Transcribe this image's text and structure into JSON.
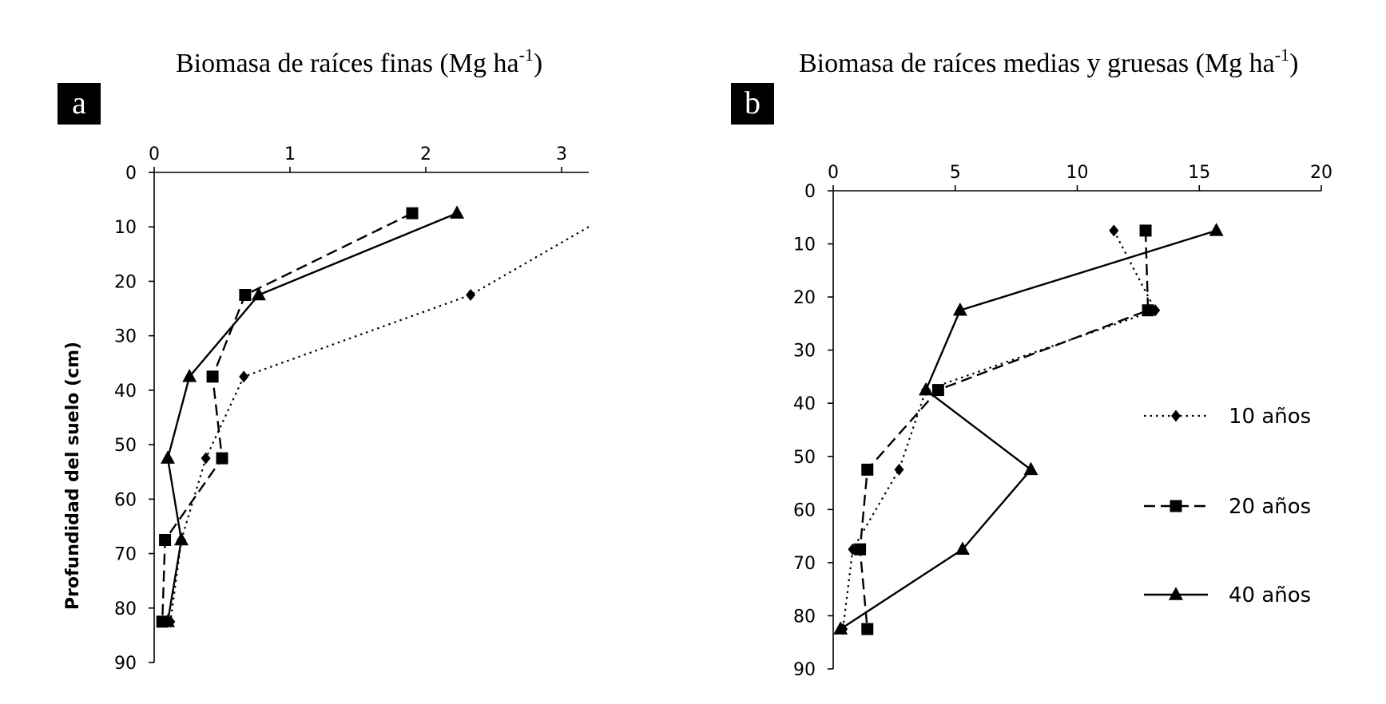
{
  "chart_data": [
    {
      "type": "line",
      "panel_label": "a",
      "title": "Biomasa de raíces finas (Mg ha",
      "title_superscript": "-1",
      "title_close": ")",
      "xlabel": "",
      "ylabel": "Profundidad del suelo (cm)",
      "xlim": [
        0,
        3.2
      ],
      "ylim": [
        0,
        90
      ],
      "x_ticks": [
        0,
        1,
        2,
        3
      ],
      "y_ticks": [
        0,
        10,
        20,
        30,
        40,
        50,
        60,
        70,
        80,
        90
      ],
      "y_inverted": true,
      "x_axis_position": "top",
      "grid": false,
      "series": [
        {
          "name": "10 años",
          "style": "dotted",
          "marker": "diamond",
          "x": [
            3.2,
            2.33,
            0.66,
            0.38,
            0.2,
            0.12
          ],
          "y": [
            10,
            22.5,
            37.5,
            52.5,
            67.5,
            82.5
          ],
          "first_point_clipped": true
        },
        {
          "name": "20 años",
          "style": "dashed",
          "marker": "square",
          "x": [
            1.9,
            0.67,
            0.43,
            0.5,
            0.08,
            0.06
          ],
          "y": [
            7.5,
            22.5,
            37.5,
            52.5,
            67.5,
            82.5
          ]
        },
        {
          "name": "40 años",
          "style": "solid",
          "marker": "triangle",
          "x": [
            2.23,
            0.77,
            0.26,
            0.1,
            0.2,
            0.1
          ],
          "y": [
            7.5,
            22.5,
            37.5,
            52.5,
            67.5,
            82.5
          ]
        }
      ]
    },
    {
      "type": "line",
      "panel_label": "b",
      "title": "Biomasa de raíces medias y gruesas (Mg ha",
      "title_superscript": "-1",
      "title_close": ")",
      "xlabel": "",
      "ylabel": "",
      "xlim": [
        0,
        20
      ],
      "ylim": [
        0,
        90
      ],
      "x_ticks": [
        0,
        5,
        10,
        15,
        20
      ],
      "y_ticks": [
        0,
        10,
        20,
        30,
        40,
        50,
        60,
        70,
        80,
        90
      ],
      "y_inverted": true,
      "x_axis_position": "top",
      "grid": false,
      "legend_position": "right",
      "series": [
        {
          "name": "10 años",
          "style": "dotted",
          "marker": "diamond",
          "x": [
            11.5,
            13.2,
            3.8,
            2.7,
            0.8,
            0.4
          ],
          "y": [
            7.5,
            22.5,
            37.5,
            52.5,
            67.5,
            82.5
          ]
        },
        {
          "name": "20 años",
          "style": "dashed",
          "marker": "square",
          "x": [
            12.8,
            12.9,
            4.3,
            1.4,
            1.1,
            1.4
          ],
          "y": [
            7.5,
            22.5,
            37.5,
            52.5,
            67.5,
            82.5
          ]
        },
        {
          "name": "40 años",
          "style": "solid",
          "marker": "triangle",
          "x": [
            15.7,
            5.2,
            3.8,
            8.1,
            5.3,
            0.3
          ],
          "y": [
            7.5,
            22.5,
            37.5,
            52.5,
            67.5,
            82.5
          ]
        }
      ]
    }
  ]
}
